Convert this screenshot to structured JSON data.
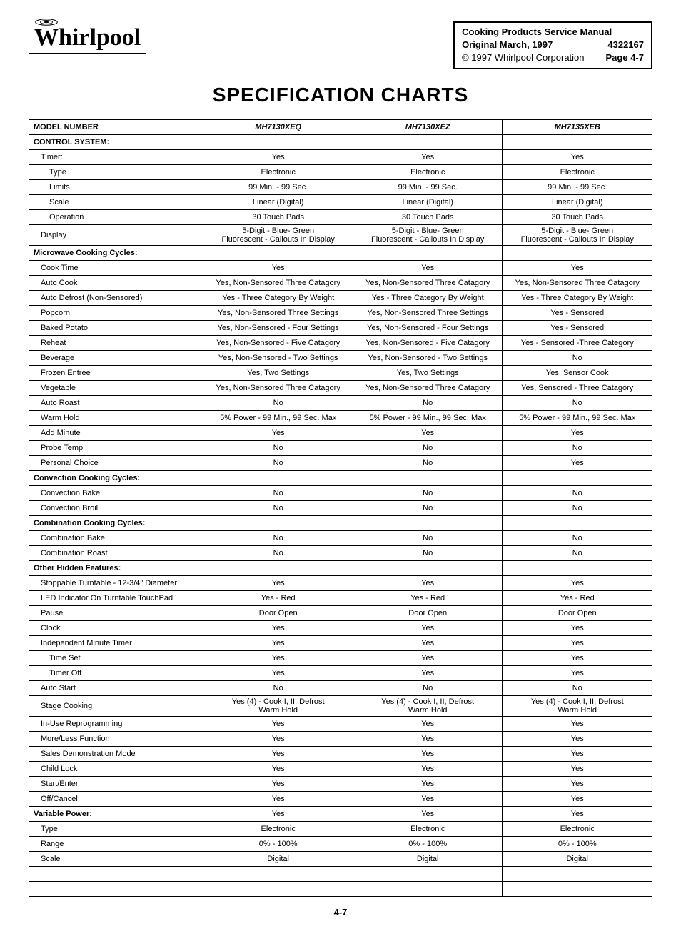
{
  "header": {
    "logo_text": "Whirlpool",
    "info": {
      "line1": "Cooking Products Service Manual",
      "line2_left": "Original   March, 1997",
      "line2_right": "4322167",
      "line3_left": "© 1997 Whirlpool Corporation",
      "line3_right": "Page 4-7"
    }
  },
  "title": "SPECIFICATION CHARTS",
  "page_number": "4-7",
  "table": {
    "col_widths": [
      "28%",
      "24%",
      "24%",
      "24%"
    ],
    "header_row": {
      "label": "MODEL NUMBER",
      "models": [
        "MH7130XEQ",
        "MH7130XEZ",
        "MH7135XEB"
      ]
    },
    "rows": [
      {
        "type": "section",
        "label": "CONTROL SYSTEM:"
      },
      {
        "type": "data",
        "indent": 1,
        "label": "Timer:",
        "vals": [
          "Yes",
          "Yes",
          "Yes"
        ]
      },
      {
        "type": "data",
        "indent": 2,
        "label": "Type",
        "vals": [
          "Electronic",
          "Electronic",
          "Electronic"
        ]
      },
      {
        "type": "data",
        "indent": 2,
        "label": "Limits",
        "vals": [
          "99 Min. - 99 Sec.",
          "99 Min. - 99 Sec.",
          "99 Min. - 99 Sec."
        ]
      },
      {
        "type": "data",
        "indent": 2,
        "label": "Scale",
        "vals": [
          "Linear (Digital)",
          "Linear (Digital)",
          "Linear (Digital)"
        ]
      },
      {
        "type": "data",
        "indent": 2,
        "label": "Operation",
        "vals": [
          "30 Touch Pads",
          "30 Touch Pads",
          "30 Touch Pads"
        ]
      },
      {
        "type": "data",
        "indent": 1,
        "label": "Display",
        "vals": [
          "5-Digit - Blue- Green\nFluorescent - Callouts In Display",
          "5-Digit - Blue- Green\nFluorescent - Callouts In Display",
          "5-Digit - Blue- Green\nFluorescent - Callouts In Display"
        ]
      },
      {
        "type": "section",
        "label": "Microwave Cooking Cycles:"
      },
      {
        "type": "data",
        "indent": 1,
        "label": "Cook Time",
        "vals": [
          "Yes",
          "Yes",
          "Yes"
        ]
      },
      {
        "type": "data",
        "indent": 1,
        "label": "Auto Cook",
        "vals": [
          "Yes, Non-Sensored Three Catagory",
          "Yes, Non-Sensored Three Catagory",
          "Yes, Non-Sensored Three Catagory"
        ]
      },
      {
        "type": "data",
        "indent": 1,
        "label": "Auto Defrost (Non-Sensored)",
        "vals": [
          "Yes - Three Category By Weight",
          "Yes - Three Category By Weight",
          "Yes - Three Category By Weight"
        ]
      },
      {
        "type": "data",
        "indent": 1,
        "label": "Popcorn",
        "vals": [
          "Yes, Non-Sensored Three Settings",
          "Yes, Non-Sensored Three Settings",
          "Yes - Sensored"
        ]
      },
      {
        "type": "data",
        "indent": 1,
        "label": "Baked Potato",
        "vals": [
          "Yes, Non-Sensored - Four Settings",
          "Yes, Non-Sensored - Four Settings",
          "Yes - Sensored"
        ]
      },
      {
        "type": "data",
        "indent": 1,
        "label": "Reheat",
        "vals": [
          "Yes, Non-Sensored - Five Catagory",
          "Yes, Non-Sensored - Five Catagory",
          "Yes - Sensored  -Three Category"
        ]
      },
      {
        "type": "data",
        "indent": 1,
        "label": "Beverage",
        "vals": [
          "Yes, Non-Sensored - Two Settings",
          "Yes, Non-Sensored - Two Settings",
          "No"
        ]
      },
      {
        "type": "data",
        "indent": 1,
        "label": "Frozen Entree",
        "vals": [
          "Yes, Two Settings",
          "Yes, Two Settings",
          "Yes, Sensor Cook"
        ]
      },
      {
        "type": "data",
        "indent": 1,
        "label": "Vegetable",
        "vals": [
          "Yes, Non-Sensored Three  Catagory",
          "Yes, Non-Sensored Three  Catagory",
          "Yes, Sensored - Three  Catagory"
        ]
      },
      {
        "type": "data",
        "indent": 1,
        "label": "Auto Roast",
        "vals": [
          "No",
          "No",
          "No"
        ]
      },
      {
        "type": "data",
        "indent": 1,
        "label": "Warm Hold",
        "vals": [
          "5% Power - 99 Min., 99 Sec. Max",
          "5% Power - 99 Min., 99 Sec. Max",
          "5% Power - 99 Min., 99 Sec. Max"
        ]
      },
      {
        "type": "data",
        "indent": 1,
        "label": "Add Minute",
        "vals": [
          "Yes",
          "Yes",
          "Yes"
        ]
      },
      {
        "type": "data",
        "indent": 1,
        "label": "Probe Temp",
        "vals": [
          "No",
          "No",
          "No"
        ]
      },
      {
        "type": "data",
        "indent": 1,
        "label": "Personal Choice",
        "vals": [
          "No",
          "No",
          "Yes"
        ]
      },
      {
        "type": "section",
        "label": "Convection Cooking Cycles:"
      },
      {
        "type": "data",
        "indent": 1,
        "label": "Convection Bake",
        "vals": [
          "No",
          "No",
          "No"
        ]
      },
      {
        "type": "data",
        "indent": 1,
        "label": "Convection Broil",
        "vals": [
          "No",
          "No",
          "No"
        ]
      },
      {
        "type": "section",
        "label": "Combination Cooking Cycles:"
      },
      {
        "type": "data",
        "indent": 1,
        "label": "Combination Bake",
        "vals": [
          "No",
          "No",
          "No"
        ]
      },
      {
        "type": "data",
        "indent": 1,
        "label": "Combination Roast",
        "vals": [
          "No",
          "No",
          "No"
        ]
      },
      {
        "type": "section",
        "label": "Other Hidden Features:"
      },
      {
        "type": "data",
        "indent": 1,
        "label": "Stoppable Turntable - 12-3/4\" Diameter",
        "vals": [
          "Yes",
          "Yes",
          "Yes"
        ]
      },
      {
        "type": "data",
        "indent": 1,
        "label": "LED Indicator On Turntable TouchPad",
        "vals": [
          "Yes - Red",
          "Yes - Red",
          "Yes - Red"
        ]
      },
      {
        "type": "data",
        "indent": 1,
        "label": "Pause",
        "vals": [
          "Door Open",
          "Door Open",
          "Door Open"
        ]
      },
      {
        "type": "data",
        "indent": 1,
        "label": "Clock",
        "vals": [
          "Yes",
          "Yes",
          "Yes"
        ]
      },
      {
        "type": "data",
        "indent": 1,
        "label": "Independent Minute Timer",
        "vals": [
          "Yes",
          "Yes",
          "Yes"
        ]
      },
      {
        "type": "data",
        "indent": 2,
        "label": "Time Set",
        "vals": [
          "Yes",
          "Yes",
          "Yes"
        ]
      },
      {
        "type": "data",
        "indent": 2,
        "label": "Timer Off",
        "vals": [
          "Yes",
          "Yes",
          "Yes"
        ]
      },
      {
        "type": "data",
        "indent": 1,
        "label": "Auto Start",
        "vals": [
          "No",
          "No",
          "No"
        ]
      },
      {
        "type": "data",
        "indent": 1,
        "label": "Stage Cooking",
        "vals": [
          "Yes (4) - Cook I, II, Defrost\nWarm Hold",
          "Yes (4) - Cook I, II, Defrost\nWarm Hold",
          "Yes (4) - Cook I, II, Defrost\nWarm Hold"
        ]
      },
      {
        "type": "data",
        "indent": 1,
        "label": "In-Use Reprogramming",
        "vals": [
          "Yes",
          "Yes",
          "Yes"
        ]
      },
      {
        "type": "data",
        "indent": 1,
        "label": "More/Less Function",
        "vals": [
          "Yes",
          "Yes",
          "Yes"
        ]
      },
      {
        "type": "data",
        "indent": 1,
        "label": "Sales Demonstration Mode",
        "vals": [
          "Yes",
          "Yes",
          "Yes"
        ]
      },
      {
        "type": "data",
        "indent": 1,
        "label": "Child Lock",
        "vals": [
          "Yes",
          "Yes",
          "Yes"
        ]
      },
      {
        "type": "data",
        "indent": 1,
        "label": "Start/Enter",
        "vals": [
          "Yes",
          "Yes",
          "Yes"
        ]
      },
      {
        "type": "data",
        "indent": 1,
        "label": "Off/Cancel",
        "vals": [
          "Yes",
          "Yes",
          "Yes"
        ]
      },
      {
        "type": "section-data",
        "label": "Variable Power:",
        "vals": [
          "Yes",
          "Yes",
          "Yes"
        ]
      },
      {
        "type": "data",
        "indent": 1,
        "label": "Type",
        "vals": [
          "Electronic",
          "Electronic",
          "Electronic"
        ]
      },
      {
        "type": "data",
        "indent": 1,
        "label": "Range",
        "vals": [
          "0% - 100%",
          "0% - 100%",
          "0% - 100%"
        ]
      },
      {
        "type": "data",
        "indent": 1,
        "label": "Scale",
        "vals": [
          "Digital",
          "Digital",
          "Digital"
        ]
      },
      {
        "type": "empty"
      },
      {
        "type": "empty"
      }
    ]
  }
}
